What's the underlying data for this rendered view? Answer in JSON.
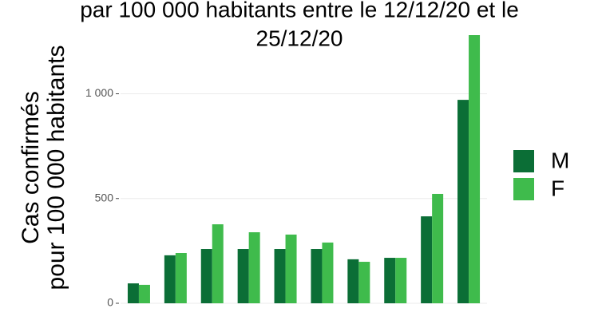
{
  "chart_data": {
    "type": "bar",
    "title": [
      "par 100 000 habitants entre le 12/12/20 et le",
      "25/12/20"
    ],
    "ylabel": [
      "Cas confirmés",
      "pour 100 000 habitants"
    ],
    "categories": [
      null,
      null,
      null,
      null,
      null,
      null,
      null,
      null,
      null,
      null
    ],
    "series": [
      {
        "name": "M",
        "color": "#0b6e36",
        "values": [
          95,
          229,
          259,
          259,
          259,
          259,
          210,
          217,
          415,
          971
        ]
      },
      {
        "name": "F",
        "color": "#3fbb4c",
        "values": [
          88,
          240,
          377,
          339,
          328,
          290,
          198,
          217,
          522,
          1280
        ]
      }
    ],
    "ylim": [
      0,
      1320
    ],
    "yticks": [
      0,
      500,
      {
        "value": 1000,
        "label": "1 000"
      }
    ],
    "grid": true,
    "legend": "right"
  }
}
